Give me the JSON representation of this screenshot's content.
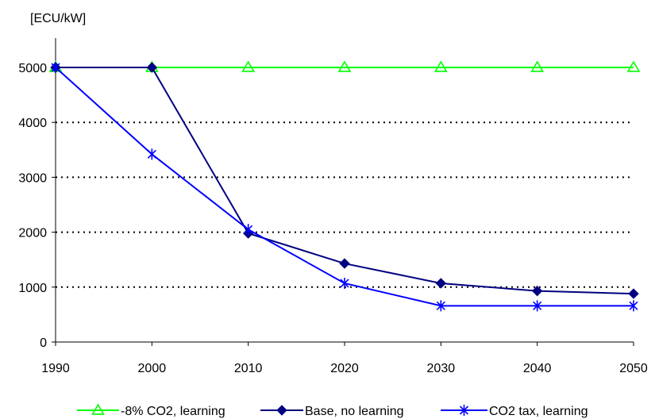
{
  "chart_data": {
    "type": "line",
    "title": "",
    "xlabel": "",
    "ylabel": "[ECU/kW]",
    "x": [
      1990,
      2000,
      2010,
      2020,
      2030,
      2040,
      2050
    ],
    "xlim": [
      1990,
      2050
    ],
    "ylim": [
      0,
      5000
    ],
    "x_ticks": [
      "1990",
      "2000",
      "2010",
      "2020",
      "2030",
      "2040",
      "2050"
    ],
    "y_ticks": [
      "0",
      "1000",
      "2000",
      "3000",
      "4000",
      "5000"
    ],
    "y_tick_values": [
      0,
      1000,
      2000,
      3000,
      4000,
      5000
    ],
    "grid": "horizontal dotted at 1000, 2000, 3000, 4000",
    "legend_position": "bottom",
    "series": [
      {
        "name": "-8% CO2, learning",
        "color": "#00ff00",
        "marker": "triangle-open",
        "values": [
          5000,
          5000,
          5000,
          5000,
          5000,
          5000,
          5000
        ]
      },
      {
        "name": "Base, no learning",
        "color": "#000080",
        "marker": "diamond-filled",
        "values": [
          5000,
          5000,
          1980,
          1430,
          1070,
          930,
          880
        ]
      },
      {
        "name": "CO2 tax, learning",
        "color": "#0000ff",
        "marker": "asterisk",
        "values": [
          5000,
          3420,
          2050,
          1070,
          660,
          660,
          660
        ]
      }
    ]
  }
}
